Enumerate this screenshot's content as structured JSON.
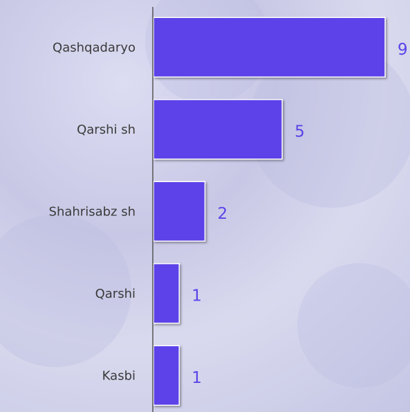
{
  "chart_data": {
    "type": "bar",
    "orientation": "horizontal",
    "categories": [
      "Qashqadaryo",
      "Qarshi sh",
      "Shahrisabz sh",
      "Qarshi",
      "Kasbi"
    ],
    "values": [
      9,
      5,
      2,
      1,
      1
    ],
    "color": "#5b43e8"
  }
}
